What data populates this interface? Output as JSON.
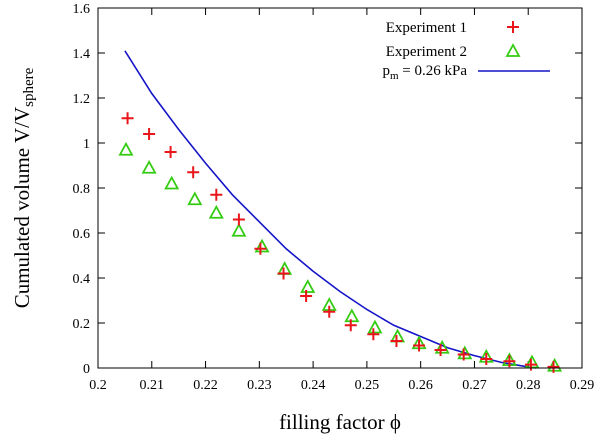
{
  "chart_data": {
    "type": "scatter",
    "title": "",
    "xlabel": "filling factor ϕ",
    "ylabel": "Cumulated volume V/V",
    "ylabel_sub": "sphere",
    "xlim": [
      0.2,
      0.29
    ],
    "ylim": [
      0,
      1.6
    ],
    "xticks": [
      "0.2",
      "0.21",
      "0.22",
      "0.23",
      "0.24",
      "0.25",
      "0.26",
      "0.27",
      "0.28",
      "0.29"
    ],
    "yticks": [
      "0",
      "0.2",
      "0.4",
      "0.6",
      "0.8",
      "1",
      "1.2",
      "1.4",
      "1.6"
    ],
    "grid": false,
    "legend_position": "top-right",
    "series": [
      {
        "name": "Experiment 1",
        "marker": "plus",
        "color": "#e8161a",
        "x": [
          0.2055,
          0.2095,
          0.2135,
          0.2177,
          0.222,
          0.2262,
          0.2302,
          0.2345,
          0.2387,
          0.243,
          0.247,
          0.2512,
          0.2555,
          0.2597,
          0.2637,
          0.268,
          0.2722,
          0.2765,
          0.2805,
          0.2847
        ],
        "y": [
          1.11,
          1.04,
          0.96,
          0.87,
          0.77,
          0.66,
          0.53,
          0.42,
          0.32,
          0.25,
          0.19,
          0.15,
          0.12,
          0.1,
          0.08,
          0.06,
          0.04,
          0.03,
          0.015,
          0.005
        ]
      },
      {
        "name": "Experiment 2",
        "marker": "triangle",
        "color": "#33cc11",
        "x": [
          0.2052,
          0.2095,
          0.2137,
          0.218,
          0.222,
          0.2262,
          0.2305,
          0.2347,
          0.239,
          0.243,
          0.2472,
          0.2515,
          0.2557,
          0.2597,
          0.264,
          0.2682,
          0.2722,
          0.2765,
          0.2807,
          0.2849
        ],
        "y": [
          0.97,
          0.89,
          0.82,
          0.75,
          0.69,
          0.61,
          0.54,
          0.44,
          0.36,
          0.28,
          0.23,
          0.18,
          0.14,
          0.11,
          0.09,
          0.065,
          0.05,
          0.035,
          0.025,
          0.01
        ]
      },
      {
        "name": "p",
        "name_sub": "m",
        "name_suffix": " = 0.26 kPa",
        "type": "line",
        "color": "#1515c8",
        "x": [
          0.205,
          0.21,
          0.215,
          0.22,
          0.225,
          0.23,
          0.235,
          0.24,
          0.245,
          0.25,
          0.255,
          0.26,
          0.265,
          0.27,
          0.275,
          0.28,
          0.2815
        ],
        "y": [
          1.41,
          1.22,
          1.06,
          0.91,
          0.77,
          0.65,
          0.53,
          0.43,
          0.34,
          0.26,
          0.19,
          0.14,
          0.09,
          0.055,
          0.025,
          0.005,
          0.0
        ]
      }
    ]
  }
}
